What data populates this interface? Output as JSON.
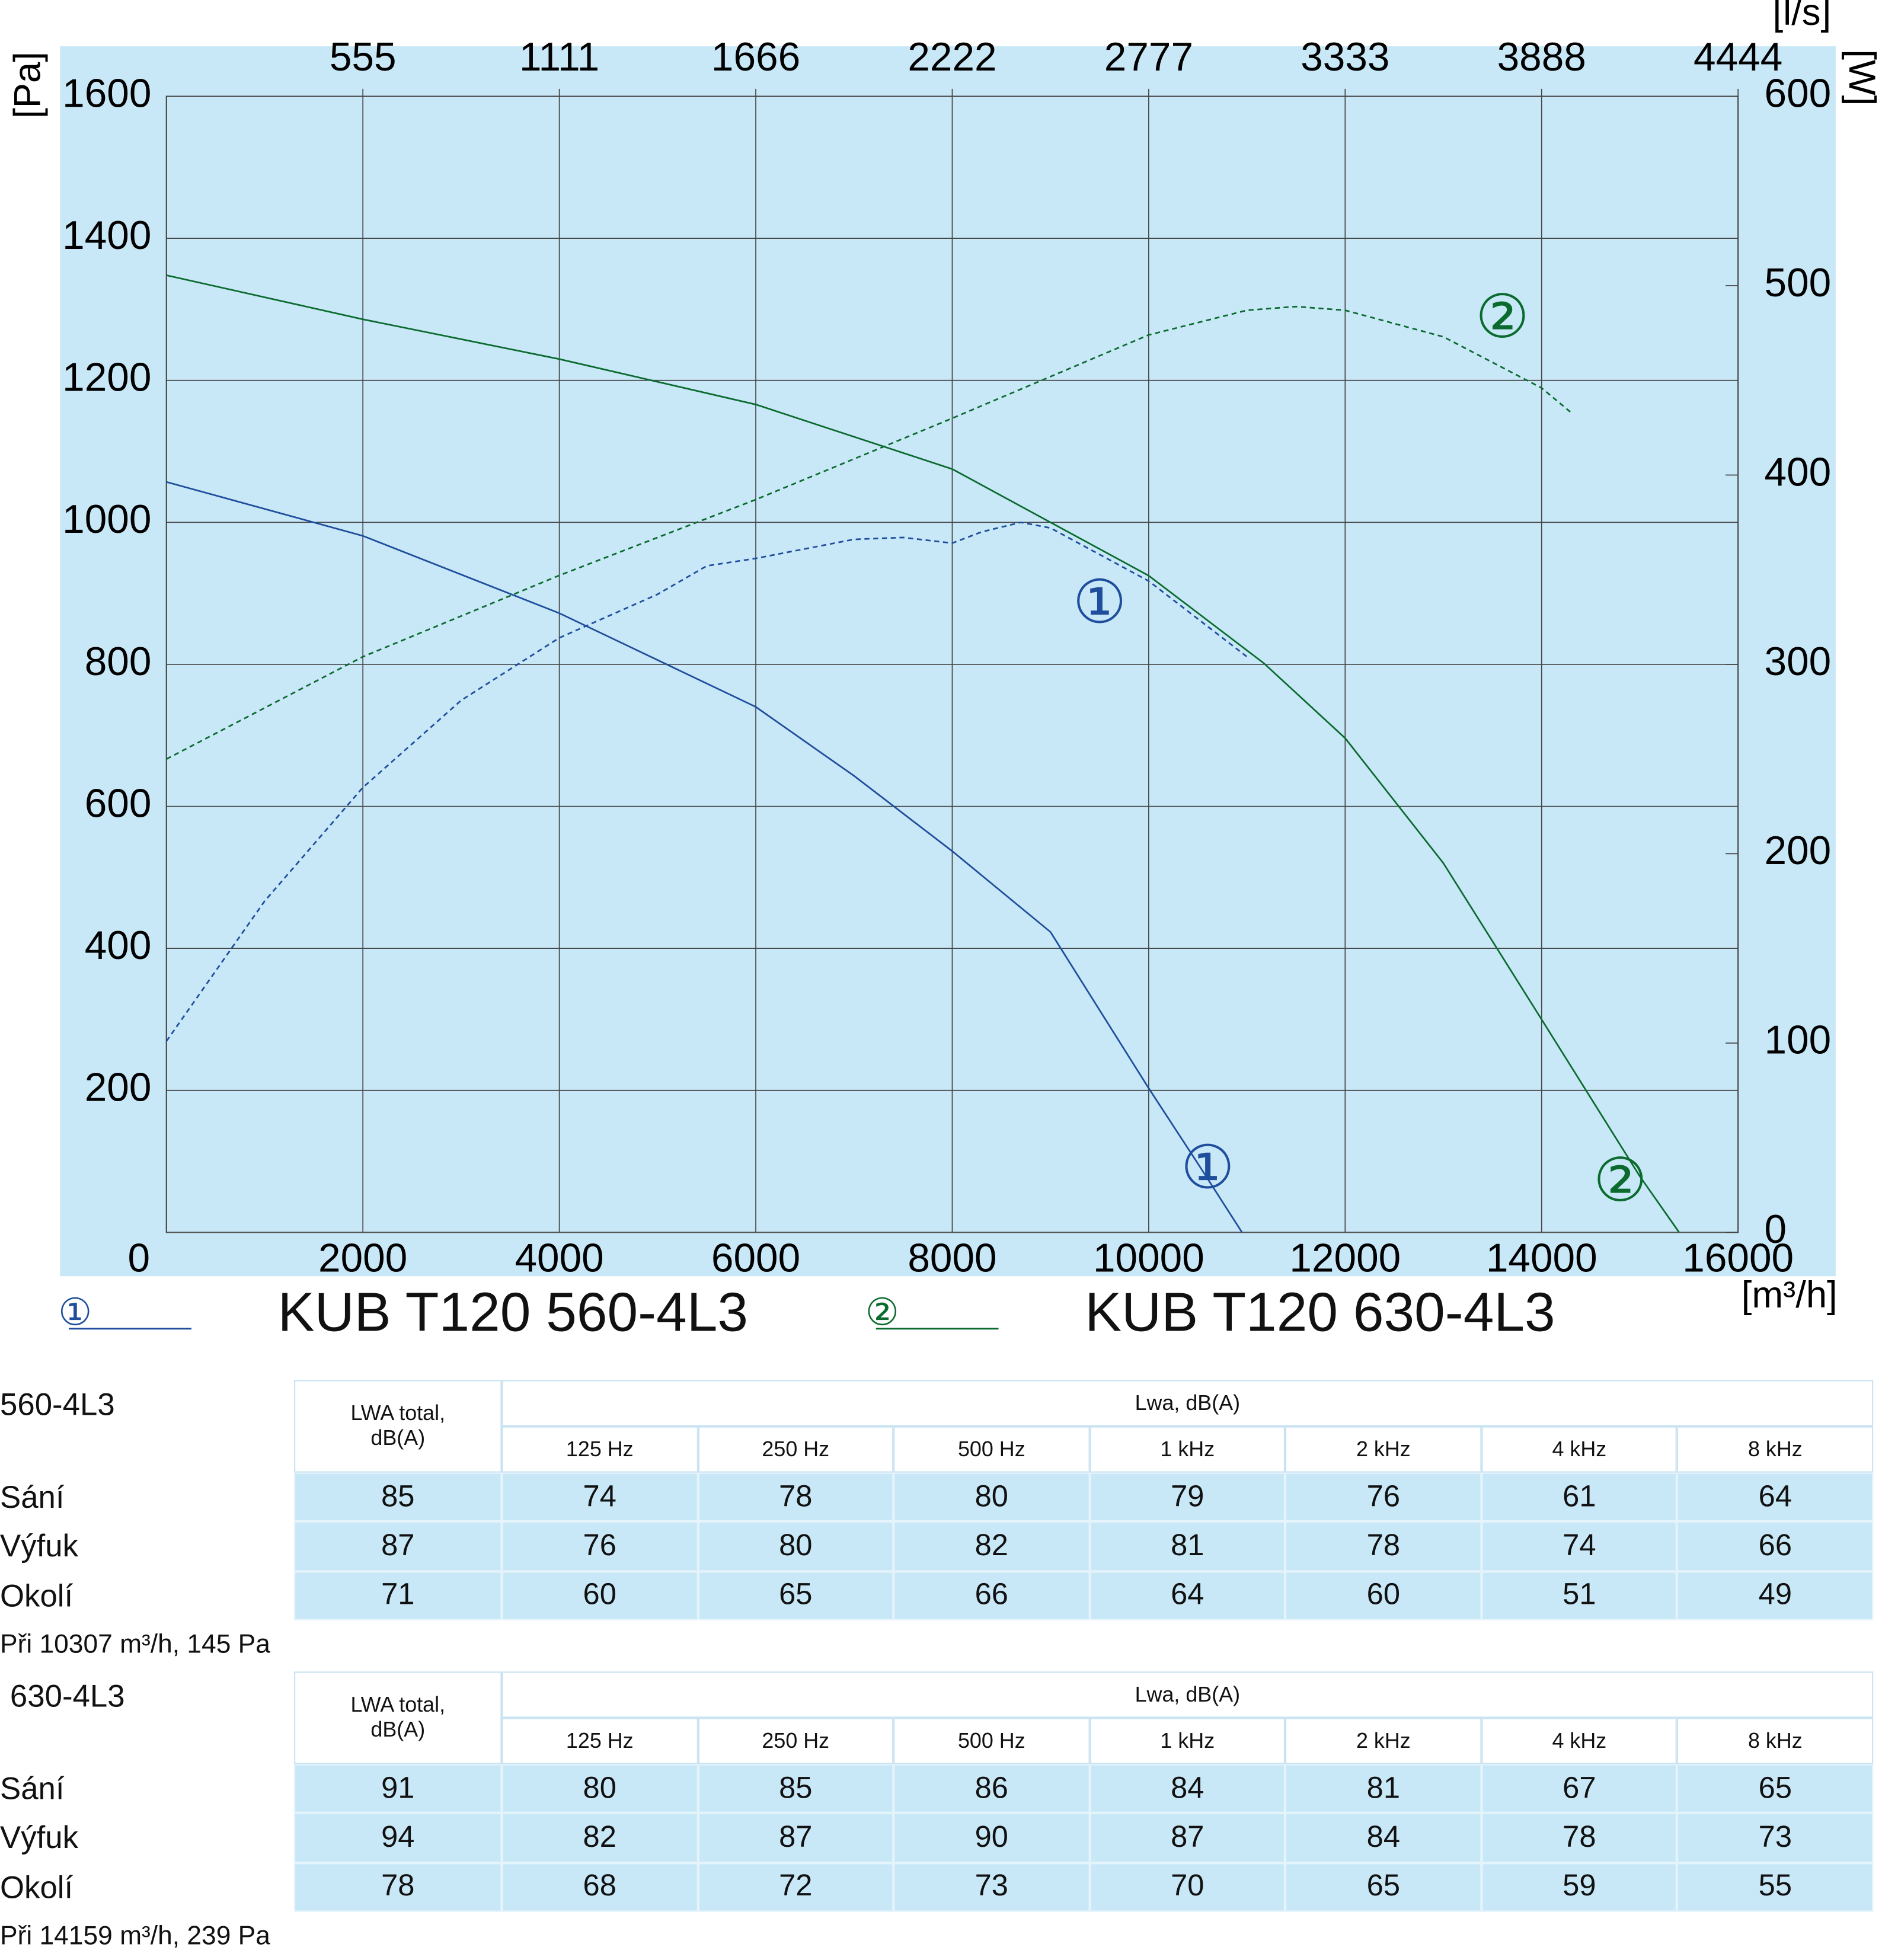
{
  "chart_data": {
    "type": "line",
    "y_label": "[Pa]",
    "y2_label": "[W]",
    "x_label": "[m³/h]",
    "x2_label": "[l/s]",
    "xlim": [
      0,
      16000
    ],
    "xticks": [
      0,
      2000,
      4000,
      6000,
      8000,
      10000,
      12000,
      14000,
      16000
    ],
    "x2ticks": [
      {
        "value": 2000,
        "label": "555"
      },
      {
        "value": 4000,
        "label": "1111"
      },
      {
        "value": 6000,
        "label": "1666"
      },
      {
        "value": 8000,
        "label": "2222"
      },
      {
        "value": 10000,
        "label": "2777"
      },
      {
        "value": 12000,
        "label": "3333"
      },
      {
        "value": 14000,
        "label": "3888"
      },
      {
        "value": 16000,
        "label": "4444"
      }
    ],
    "ylim": [
      0,
      1600
    ],
    "yticks": [
      200,
      400,
      600,
      800,
      1000,
      1200,
      1400,
      1600
    ],
    "y2lim": [
      0,
      600
    ],
    "y2ticks": [
      0,
      100,
      200,
      300,
      400,
      500,
      600
    ],
    "grid": true,
    "series": [
      {
        "name": "KUB T120 560-4L3",
        "marker": "①",
        "color": "#1f4e9c",
        "x": [
          0,
          2000,
          4000,
          6000,
          7000,
          8000,
          9000,
          10000,
          10500,
          10950
        ],
        "values": [
          1057,
          981,
          872,
          740,
          643,
          537,
          423,
          203,
          97,
          0
        ]
      },
      {
        "color": "#1f4e9c",
        "axis": "y2",
        "dashed": true,
        "x": [
          0,
          1000,
          2000,
          3000,
          4000,
          5000,
          5500,
          6000,
          7000,
          7500,
          8000,
          8300,
          8700,
          9000,
          10000,
          11000
        ],
        "values": [
          101,
          175,
          235,
          281,
          314,
          337,
          352,
          356,
          366,
          367,
          364,
          370,
          375,
          372,
          344,
          304
        ]
      },
      {
        "name": "KUB T120 630-4L3",
        "marker": "②",
        "color": "#0b6b2e",
        "x": [
          0,
          2000,
          4000,
          6000,
          8000,
          10000,
          11170,
          12000,
          13000,
          14000,
          15000,
          15400
        ],
        "values": [
          1348,
          1286,
          1230,
          1166,
          1075,
          925,
          802,
          696,
          520,
          300,
          79,
          0
        ]
      },
      {
        "color": "#0b6b2e",
        "axis": "y2",
        "dashed": true,
        "x": [
          0,
          2000,
          4000,
          6000,
          8000,
          10000,
          11000,
          11500,
          12000,
          13000,
          14000,
          14300
        ],
        "values": [
          250,
          304,
          347,
          387,
          430,
          474,
          487,
          489,
          487,
          473,
          446,
          433
        ]
      }
    ],
    "annotations": [
      {
        "text": "①",
        "x": 9500,
        "y": 881,
        "color": "#1f4e9c"
      },
      {
        "text": "①",
        "x": 10600,
        "y": 85,
        "color": "#1f4e9c"
      },
      {
        "text": "②",
        "x": 13600,
        "y": 1283,
        "color": "#0b6b2e"
      },
      {
        "text": "②",
        "x": 14800,
        "y": 67,
        "color": "#0b6b2e"
      }
    ]
  },
  "tables": [
    {
      "title": "560-4L3",
      "header_total": "LWA total, dB(A)",
      "header_group": "Lwa, dB(A)",
      "bands": [
        "125 Hz",
        "250 Hz",
        "500 Hz",
        "1 kHz",
        "2 kHz",
        "4 kHz",
        "8 kHz"
      ],
      "rows": [
        {
          "label": "Sání",
          "values": [
            85,
            74,
            78,
            80,
            79,
            76,
            61,
            64
          ]
        },
        {
          "label": "Výfuk",
          "values": [
            87,
            76,
            80,
            82,
            81,
            78,
            74,
            66
          ]
        },
        {
          "label": "Okolí",
          "values": [
            71,
            60,
            65,
            66,
            64,
            60,
            51,
            49
          ]
        }
      ],
      "note": "Při 10307 m³/h, 145 Pa"
    },
    {
      "title": "630-4L3",
      "header_total": "LWA total, dB(A)",
      "header_group": "Lwa, dB(A)",
      "bands": [
        "125 Hz",
        "250 Hz",
        "500 Hz",
        "1 kHz",
        "2 kHz",
        "4 kHz",
        "8 kHz"
      ],
      "rows": [
        {
          "label": "Sání",
          "values": [
            91,
            80,
            85,
            86,
            84,
            81,
            67,
            65
          ]
        },
        {
          "label": "Výfuk",
          "values": [
            94,
            82,
            87,
            90,
            87,
            84,
            78,
            73
          ]
        },
        {
          "label": "Okolí",
          "values": [
            78,
            68,
            72,
            73,
            70,
            65,
            59,
            55
          ]
        }
      ],
      "note": "Při 14159 m³/h, 239 Pa"
    }
  ]
}
